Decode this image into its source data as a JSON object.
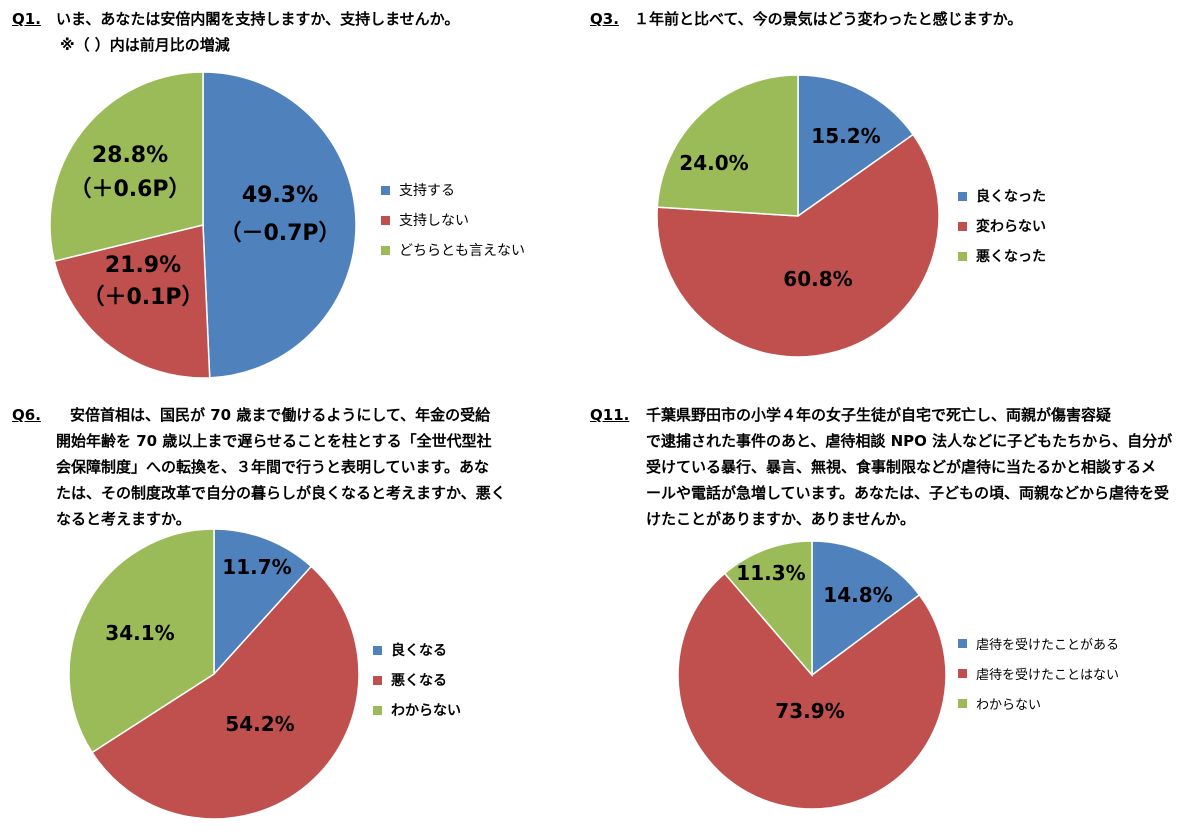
{
  "chart_data": [
    {
      "type": "pie",
      "question_number": "Q1.",
      "title": "いま、あなたは安倍内閣を支持しますか、支持しませんか。",
      "subtitle": "※（ ）内は前月比の増減",
      "categories": [
        "支持する",
        "支持しない",
        "どちらとも言えない"
      ],
      "values": [
        49.3,
        21.9,
        28.8
      ],
      "value_labels": [
        "49.3%",
        "21.9%",
        "28.8%"
      ],
      "change_labels": [
        "（－0.7P）",
        "（＋0.1P）",
        "（＋0.6P）"
      ],
      "colors": [
        "#4F81BD",
        "#C0504D",
        "#9BBB59"
      ],
      "legend_position": "right"
    },
    {
      "type": "pie",
      "question_number": "Q3.",
      "title": "１年前と比べて、今の景気はどう変わったと感じますか。",
      "categories": [
        "良くなった",
        "変わらない",
        "悪くなった"
      ],
      "values": [
        15.2,
        60.8,
        24.0
      ],
      "value_labels": [
        "15.2%",
        "60.8%",
        "24.0%"
      ],
      "colors": [
        "#4F81BD",
        "#C0504D",
        "#9BBB59"
      ],
      "legend_position": "right"
    },
    {
      "type": "pie",
      "question_number": "Q6.",
      "title_lines": [
        "安倍首相は、国民が 70 歳まで働けるようにして、年金の受給",
        "開始年齢を 70 歳以上まで遅らせることを柱とする「全世代型社",
        "会保障制度」への転換を、３年間で行うと表明しています。あな",
        "たは、その制度改革で自分の暮らしが良くなると考えますか、悪く",
        "なると考えますか。"
      ],
      "categories": [
        "良くなる",
        "悪くなる",
        "わからない"
      ],
      "values": [
        11.7,
        54.2,
        34.1
      ],
      "value_labels": [
        "11.7%",
        "54.2%",
        "34.1%"
      ],
      "colors": [
        "#4F81BD",
        "#C0504D",
        "#9BBB59"
      ],
      "legend_position": "right"
    },
    {
      "type": "pie",
      "question_number": "Q11.",
      "title_lines": [
        "千葉県野田市の小学４年の女子生徒が自宅で死亡し、両親が傷害容疑",
        "で逮捕された事件のあと、虐待相談 NPO 法人などに子どもたちから、自分が",
        "受けている暴行、暴言、無視、食事制限などが虐待に当たるかと相談するメ",
        "ールや電話が急増しています。あなたは、子どもの頃、両親などから虐待を受",
        "けたことがありますか、ありませんか。"
      ],
      "categories": [
        "虐待を受けたことがある",
        "虐待を受けたことはない",
        "わからない"
      ],
      "values": [
        14.8,
        73.9,
        11.3
      ],
      "value_labels": [
        "14.8%",
        "73.9%",
        "11.3%"
      ],
      "colors": [
        "#4F81BD",
        "#C0504D",
        "#9BBB59"
      ],
      "legend_position": "right"
    }
  ]
}
